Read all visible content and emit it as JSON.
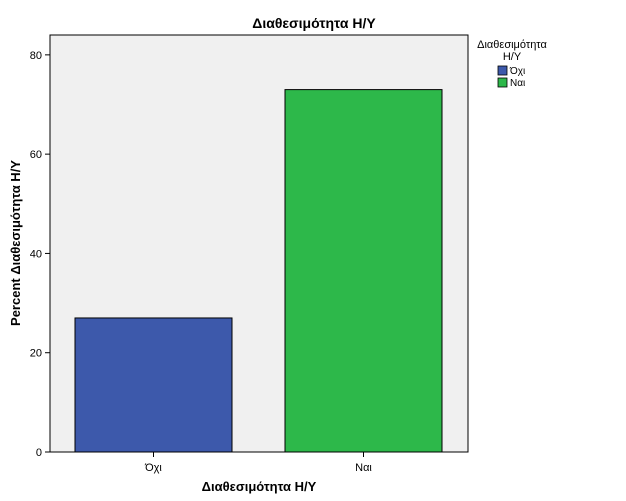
{
  "chart_data": {
    "type": "bar",
    "title": "Διαθεσιμότητα Η/Υ",
    "xlabel": "Διαθεσιμότητα Η/Υ",
    "ylabel": "Percent Διαθεσιμότητα Η/Υ",
    "categories": [
      "Όχι",
      "Ναι"
    ],
    "values": [
      27,
      73
    ],
    "colors": [
      "#3d59ab",
      "#2db84a"
    ],
    "ylim": [
      0,
      84
    ],
    "yticks": [
      0,
      20,
      40,
      60,
      80
    ],
    "grid": false,
    "legend": {
      "title_lines": [
        "Διαθεσιμότητα",
        "Η/Υ"
      ],
      "items": [
        "Όχι",
        "Ναι"
      ],
      "placement": "top-right"
    }
  },
  "style": {
    "plot_background": "#f0f0f0",
    "bar_outline": "#000000"
  }
}
